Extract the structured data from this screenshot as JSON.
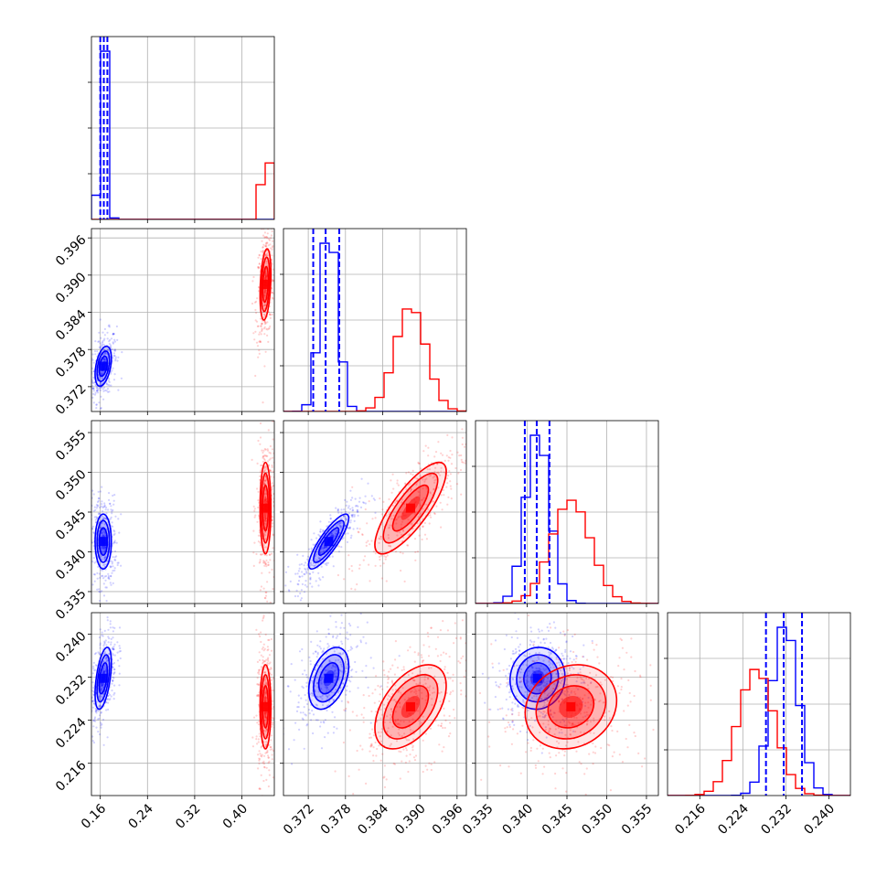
{
  "chart_data": {
    "type": "corner",
    "title": "",
    "colors": {
      "blue": "#0000ff",
      "red": "#ff0000",
      "grid": "#b0b0b0"
    },
    "grid": true,
    "parameters": [
      {
        "range": [
          0.145,
          0.455
        ],
        "ticks": [
          "0.16",
          "0.24",
          "0.32",
          "0.40"
        ],
        "tick_values": [
          0.16,
          0.24,
          0.32,
          0.4
        ]
      },
      {
        "range": [
          0.368,
          0.3975
        ],
        "ticks": [
          "0.372",
          "0.378",
          "0.384",
          "0.390",
          "0.396"
        ],
        "tick_values": [
          0.372,
          0.378,
          0.384,
          0.39,
          0.396
        ]
      },
      {
        "range": [
          0.3335,
          0.3565
        ],
        "ticks": [
          "0.335",
          "0.340",
          "0.345",
          "0.350",
          "0.355"
        ],
        "tick_values": [
          0.335,
          0.34,
          0.345,
          0.35,
          0.355
        ]
      },
      {
        "range": [
          0.21,
          0.244
        ],
        "ticks": [
          "0.216",
          "0.224",
          "0.232",
          "0.240"
        ],
        "tick_values": [
          0.216,
          0.224,
          0.232,
          0.24
        ]
      }
    ],
    "series": [
      {
        "color": "#0000ff",
        "means": [
          0.165,
          0.3753,
          0.3413,
          0.2318
        ],
        "sigmas": [
          0.006,
          0.0014,
          0.0015,
          0.0025
        ],
        "correlations": {
          "0-1": 0.4,
          "0-2": 0.0,
          "0-3": 0.5,
          "1-2": 0.85,
          "1-3": 0.4,
          "2-3": 0.05
        },
        "quantile_lines": [
          [
            0.16,
            0.166,
            0.172
          ],
          [
            0.3728,
            0.3748,
            0.377
          ],
          [
            0.3397,
            0.3412,
            0.3428
          ],
          [
            0.2283,
            0.2316,
            0.235
          ]
        ]
      },
      {
        "color": "#ff0000",
        "means": [
          0.44,
          0.3885,
          0.3455,
          0.2265
        ],
        "sigmas": [
          0.004,
          0.0025,
          0.0025,
          0.0034
        ],
        "correlations": {
          "0-1": 0.3,
          "0-2": 0.0,
          "0-3": 0.0,
          "1-2": 0.8,
          "1-3": 0.5,
          "2-3": 0.15
        },
        "quantile_lines": []
      }
    ]
  }
}
